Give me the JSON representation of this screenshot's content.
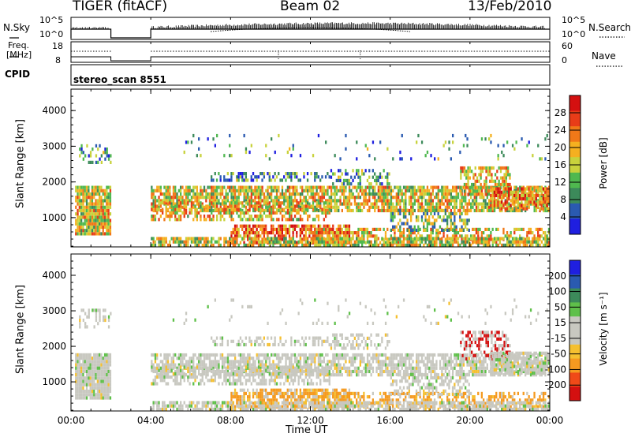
{
  "header": {
    "station": "TIGER (fitACF)",
    "beam": "Beam 02",
    "date": "13/Feb/2010"
  },
  "sky_panel": {
    "left_label": "N.Sky",
    "right_label": "N.Search",
    "left_ticks": [
      "10^5",
      "10^0"
    ],
    "right_ticks": [
      "10^5",
      "10^0"
    ]
  },
  "freq_panel": {
    "left_label_line1": "Freq.",
    "left_label_line2": "[MHz]",
    "right_label": "Nave",
    "left_ticks": [
      "18",
      "8"
    ],
    "right_ticks": [
      "60",
      "0"
    ]
  },
  "cpid_panel": {
    "label": "CPID",
    "value": "stereo_scan 8551"
  },
  "colors": {
    "power_scale": [
      "#1f1fe0",
      "#2a5ab0",
      "#3c8a5a",
      "#4fb84f",
      "#c8d23c",
      "#f5b020",
      "#f07818",
      "#e83c18",
      "#d41010"
    ],
    "velocity_scale": [
      "#d41010",
      "#f04a18",
      "#f59a20",
      "#f5c030",
      "#c8c8c0",
      "#c8c8c0",
      "#5fc04a",
      "#3c8a5a",
      "#2a5ab0",
      "#1f1fe0"
    ]
  },
  "chart_data": [
    {
      "type": "heatmap",
      "title": "Power",
      "xlabel": "Time UT",
      "ylabel": "Slant Range [km]",
      "x_ticks": [
        "00:00",
        "04:00",
        "08:00",
        "12:00",
        "16:00",
        "20:00",
        "00:00"
      ],
      "y_ticks": [
        "1000",
        "2000",
        "3000",
        "4000"
      ],
      "ylim": [
        180,
        4600
      ],
      "colorbar_label": "Power [dB]",
      "colorbar_ticks": [
        "4",
        "8",
        "12",
        "16",
        "20",
        "24",
        "28"
      ],
      "data_gap_hours": [
        2.0,
        4.0
      ]
    },
    {
      "type": "heatmap",
      "title": "Velocity",
      "xlabel": "Time UT",
      "ylabel": "Slant Range [km]",
      "x_ticks": [
        "00:00",
        "04:00",
        "08:00",
        "12:00",
        "16:00",
        "20:00",
        "00:00"
      ],
      "y_ticks": [
        "1000",
        "2000",
        "3000",
        "4000"
      ],
      "ylim": [
        180,
        4600
      ],
      "colorbar_label": "Velocity [m s⁻¹]",
      "colorbar_ticks": [
        "200",
        "100",
        "50",
        "15",
        "-15",
        "-50",
        "-100",
        "-200"
      ],
      "data_gap_hours": [
        2.0,
        4.0
      ]
    }
  ]
}
